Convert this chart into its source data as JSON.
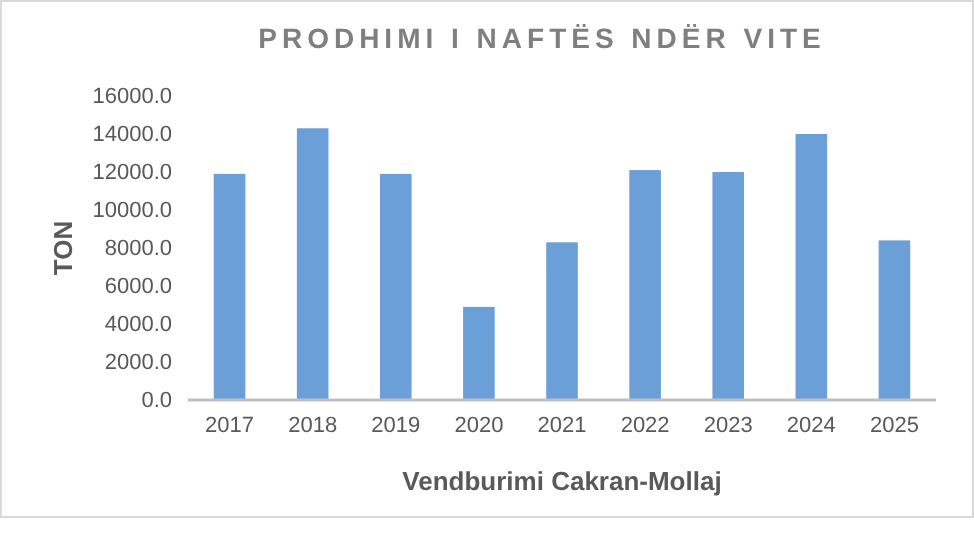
{
  "chart_data": {
    "type": "bar",
    "title": "PRODHIMI I NAFTËS NDËR VITE",
    "xlabel": "Vendburimi Cakran-Mollaj",
    "ylabel": "TON",
    "categories": [
      "2017",
      "2018",
      "2019",
      "2020",
      "2021",
      "2022",
      "2023",
      "2024",
      "2025"
    ],
    "values": [
      11900,
      14300,
      11900,
      4900,
      8300,
      12100,
      12000,
      14000,
      8400
    ],
    "color": "#6a9fd8",
    "ylim": [
      0,
      16000
    ],
    "yticks": [
      {
        "value": 0,
        "label": "0.0"
      },
      {
        "value": 2000,
        "label": "2000.0"
      },
      {
        "value": 4000,
        "label": "4000.0"
      },
      {
        "value": 6000,
        "label": "6000.0"
      },
      {
        "value": 8000,
        "label": "8000.0"
      },
      {
        "value": 10000,
        "label": "10000.0"
      },
      {
        "value": 12000,
        "label": "12000.0"
      },
      {
        "value": 14000,
        "label": "14000.0"
      },
      {
        "value": 16000,
        "label": "16000.0"
      }
    ],
    "grid": false
  }
}
